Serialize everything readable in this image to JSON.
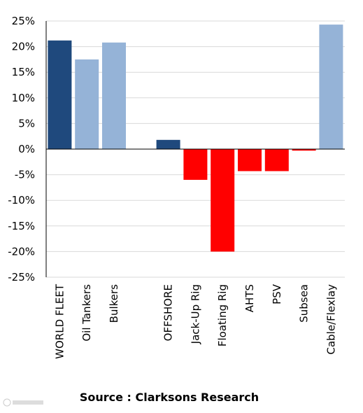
{
  "chart_data": {
    "type": "bar",
    "categories": [
      "WORLD FLEET",
      "Oil Tankers",
      "Bulkers",
      "",
      "OFFSHORE",
      "Jack-Up Rig",
      "Floating Rig",
      "AHTS",
      "PSV",
      "Subsea",
      "Cable/Flexlay"
    ],
    "values": [
      21.2,
      17.5,
      20.8,
      null,
      1.8,
      -6.0,
      -20.0,
      -4.3,
      -4.3,
      -0.3,
      24.3
    ],
    "colors": [
      "#1f497d",
      "#95b3d7",
      "#95b3d7",
      null,
      "#1f497d",
      "#ff0000",
      "#ff0000",
      "#ff0000",
      "#ff0000",
      "#ff0000",
      "#95b3d7"
    ],
    "yticks": [
      "25%",
      "20%",
      "15%",
      "10%",
      "5%",
      "0%",
      "-5%",
      "-10%",
      "-15%",
      "-20%",
      "-25%"
    ],
    "ylim": [
      -25,
      25
    ],
    "grid": true,
    "title": "",
    "xlabel": "",
    "ylabel": ""
  },
  "source": "Source : Clarksons Research"
}
